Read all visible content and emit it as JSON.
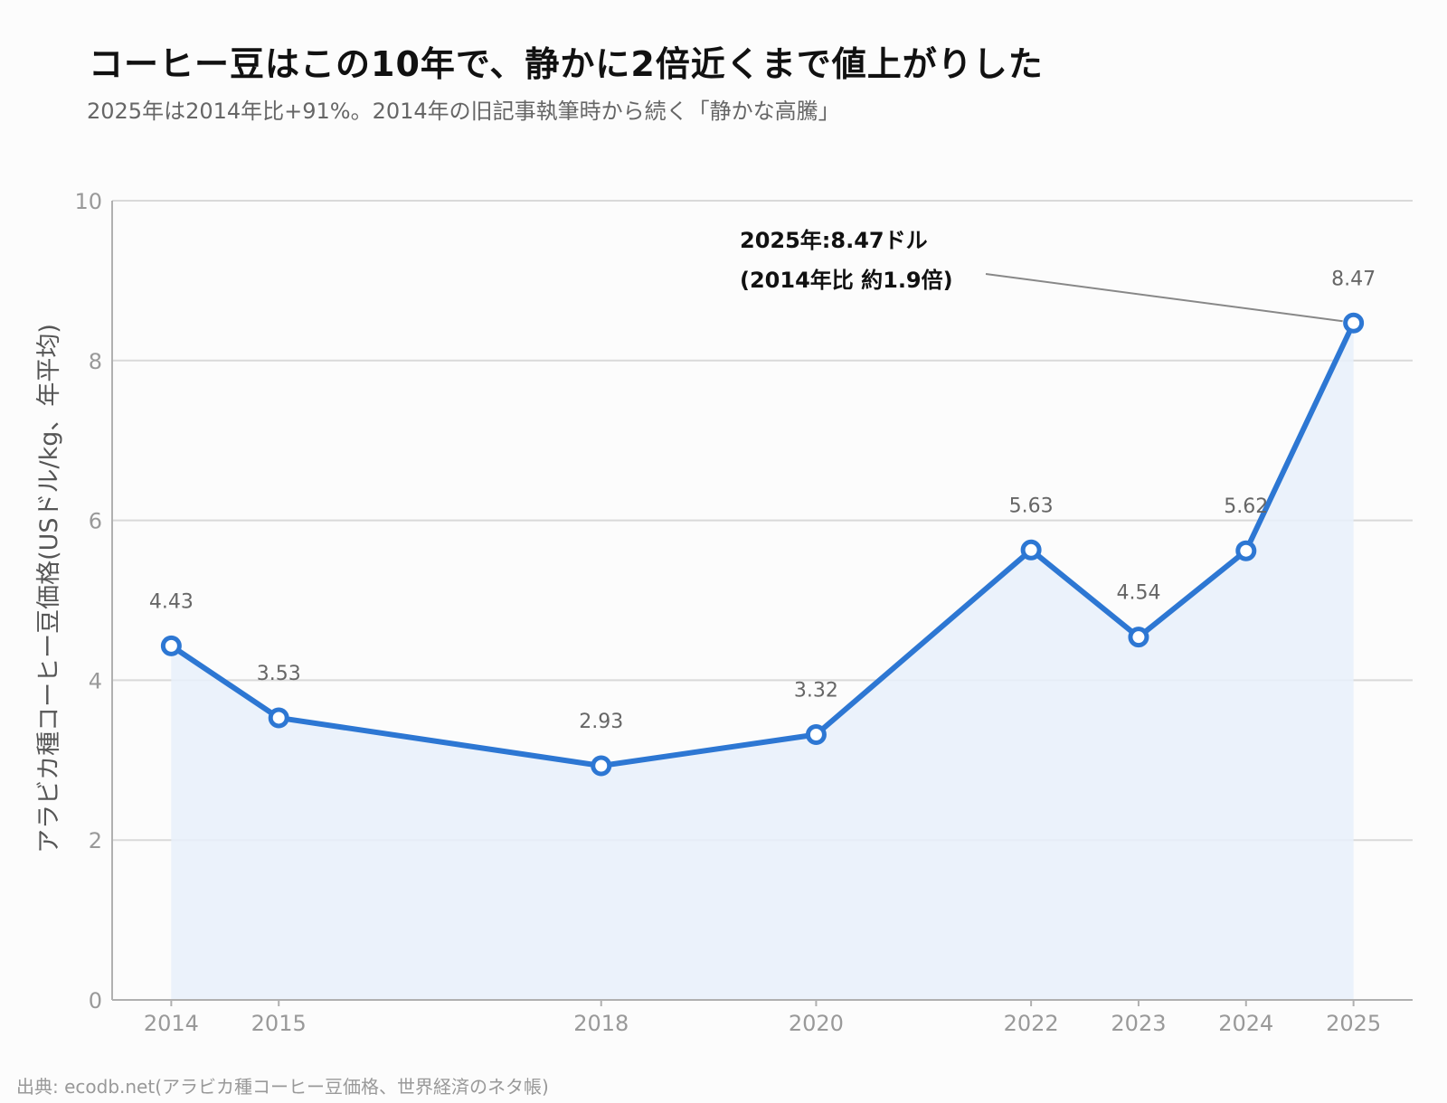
{
  "title": "コーヒー豆はこの10年で、静かに2倍近くまで値上がりした",
  "subtitle": "2025年は2014年比+91%。2014年の旧記事執筆時から続く「静かな高騰」",
  "source": "出典: ecodb.net(アラビカ種コーヒー豆価格、世界経済のネタ帳)",
  "colors": {
    "line": "#2d77d3",
    "area": "#e8f0fa",
    "grid": "#d9d9d9",
    "axis": "#b0b0b0",
    "annotation_line": "#888888"
  },
  "chart_data": {
    "type": "line",
    "title": "コーヒー豆はこの10年で、静かに2倍近くまで値上がりした",
    "subtitle": "2025年は2014年比+91%。2014年の旧記事執筆時から続く「静かな高騰」",
    "x": [
      2014,
      2015,
      2018,
      2020,
      2022,
      2023,
      2024,
      2025
    ],
    "x_tick_labels": [
      "2014",
      "2015",
      "2018",
      "2020",
      "2022",
      "2023",
      "2024",
      "2025"
    ],
    "xlim": [
      2013.45,
      2025.55
    ],
    "series": [
      {
        "values": [
          4.43,
          3.53,
          2.93,
          3.32,
          5.63,
          4.54,
          5.62,
          8.47
        ],
        "labels": [
          "4.43",
          "3.53",
          "2.93",
          "3.32",
          "5.63",
          "4.54",
          "5.62",
          "8.47"
        ]
      }
    ],
    "xlabel": "",
    "ylabel": "アラビカ種コーヒー豆価格(USドル/kg、年平均)",
    "ylim": [
      0,
      10
    ],
    "y_ticks": [
      0,
      2,
      4,
      6,
      8,
      10
    ],
    "grid": "horizontal",
    "area_fill": true,
    "annotation": {
      "x": 2025,
      "y": 8.47,
      "lines": [
        "2025年:8.47ドル",
        "(2014年比 約1.9倍)"
      ]
    }
  }
}
